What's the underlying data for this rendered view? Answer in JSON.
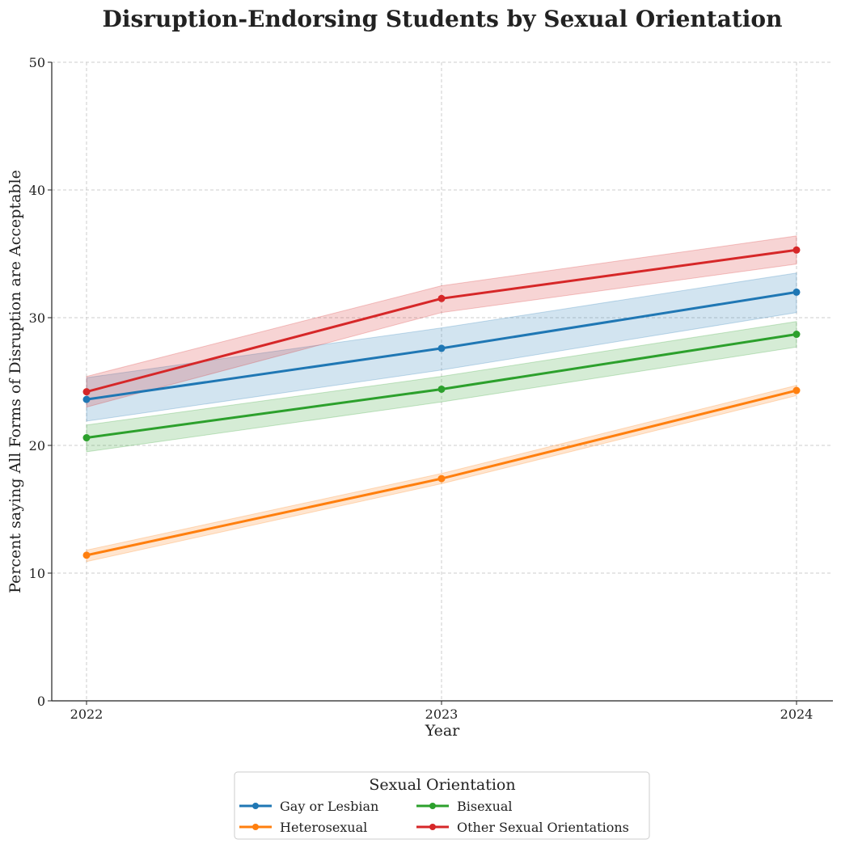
{
  "chart_data": {
    "type": "line",
    "title": "Disruption-Endorsing Students by Sexual Orientation",
    "xlabel": "Year",
    "ylabel": "Percent saying All Forms of Disruption are Acceptable",
    "x": [
      "2022",
      "2023",
      "2024"
    ],
    "ylim": [
      0,
      50
    ],
    "yticks": [
      0,
      10,
      20,
      30,
      40,
      50
    ],
    "grid": true,
    "legend": {
      "title": "Sexual Orientation",
      "placement": "bottom-center"
    },
    "series": [
      {
        "name": "Gay or Lesbian",
        "color": "#1f77b4",
        "values": [
          23.6,
          27.6,
          32.0
        ],
        "lower": [
          21.9,
          25.9,
          30.4
        ],
        "upper": [
          25.3,
          29.2,
          33.5
        ]
      },
      {
        "name": "Heterosexual",
        "color": "#ff7f0e",
        "values": [
          11.4,
          17.4,
          24.3
        ],
        "lower": [
          10.9,
          17.0,
          23.9
        ],
        "upper": [
          11.8,
          17.8,
          24.7
        ]
      },
      {
        "name": "Bisexual",
        "color": "#2ca02c",
        "values": [
          20.6,
          24.4,
          28.7
        ],
        "lower": [
          19.5,
          23.4,
          27.7
        ],
        "upper": [
          21.6,
          25.4,
          29.7
        ]
      },
      {
        "name": "Other Sexual Orientations",
        "color": "#d62728",
        "values": [
          24.2,
          31.5,
          35.3
        ],
        "lower": [
          23.0,
          30.4,
          34.2
        ],
        "upper": [
          25.4,
          32.5,
          36.4
        ]
      }
    ]
  }
}
